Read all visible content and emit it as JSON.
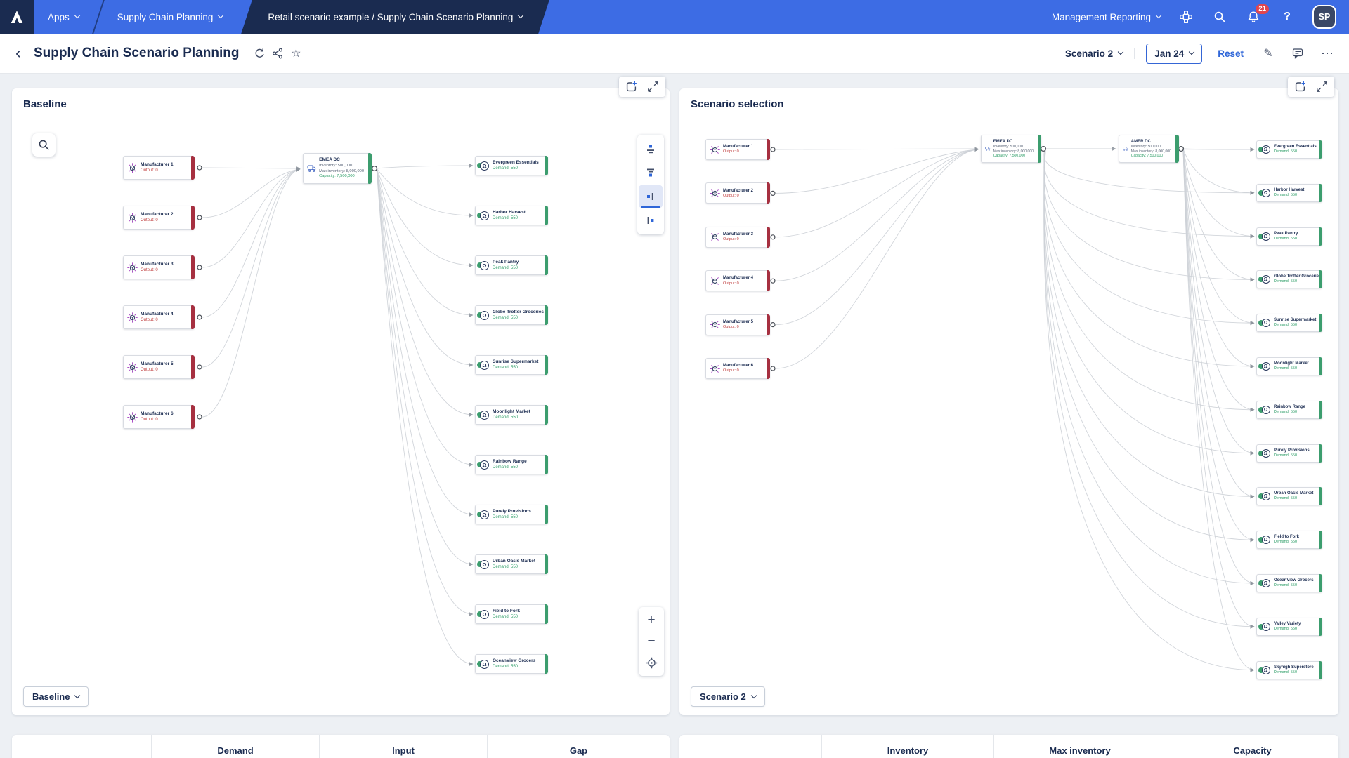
{
  "topbar": {
    "apps_label": "Apps",
    "workspace_label": "Supply Chain Planning",
    "tab_label": "Retail scenario example / Supply Chain Scenario Planning",
    "right_menu_label": "Management Reporting",
    "notification_count": "21",
    "avatar_initials": "SP"
  },
  "header": {
    "title": "Supply Chain Scenario Planning",
    "scenario_selector": "Scenario 2",
    "period_selector": "Jan 24",
    "reset_label": "Reset"
  },
  "panels": {
    "baseline": {
      "title": "Baseline",
      "footer_selector": "Baseline",
      "manufacturers": [
        {
          "name": "Manufacturer 1",
          "detail": "Output: 0"
        },
        {
          "name": "Manufacturer 2",
          "detail": "Output: 0"
        },
        {
          "name": "Manufacturer 3",
          "detail": "Output: 0"
        },
        {
          "name": "Manufacturer 4",
          "detail": "Output: 0"
        },
        {
          "name": "Manufacturer 5",
          "detail": "Output: 0"
        },
        {
          "name": "Manufacturer 6",
          "detail": "Output: 0"
        }
      ],
      "dcs": [
        {
          "name": "EMEA DC",
          "lines": [
            "Inventory: 500,000",
            "Max inventory: 8,000,000"
          ],
          "capacity": "Capacity: 7,500,000"
        }
      ],
      "retailers": [
        {
          "name": "Evergreen Essentials",
          "detail": "Demand: 550"
        },
        {
          "name": "Harbor Harvest",
          "detail": "Demand: 550"
        },
        {
          "name": "Peak Pantry",
          "detail": "Demand: 550"
        },
        {
          "name": "Globe Trotter Groceries",
          "detail": "Demand: 550"
        },
        {
          "name": "Sunrise Supermarket",
          "detail": "Demand: 550"
        },
        {
          "name": "Moonlight Market",
          "detail": "Demand: 550"
        },
        {
          "name": "Rainbow Range",
          "detail": "Demand: 550"
        },
        {
          "name": "Purely Provisions",
          "detail": "Demand: 550"
        },
        {
          "name": "Urban Oasis Market",
          "detail": "Demand: 550"
        },
        {
          "name": "Field to Fork",
          "detail": "Demand: 550"
        },
        {
          "name": "OceanView Grocers",
          "detail": "Demand: 550"
        }
      ]
    },
    "scenario": {
      "title": "Scenario selection",
      "footer_selector": "Scenario 2",
      "manufacturers": [
        {
          "name": "Manufacturer 1",
          "detail": "Output: 0"
        },
        {
          "name": "Manufacturer 2",
          "detail": "Output: 0"
        },
        {
          "name": "Manufacturer 3",
          "detail": "Output: 0"
        },
        {
          "name": "Manufacturer 4",
          "detail": "Output: 0"
        },
        {
          "name": "Manufacturer 5",
          "detail": "Output: 0"
        },
        {
          "name": "Manufacturer 6",
          "detail": "Output: 0"
        }
      ],
      "dcs": [
        {
          "name": "EMEA DC",
          "lines": [
            "Inventory: 500,000",
            "Max inventory: 8,000,000"
          ],
          "capacity": "Capacity: 7,500,000"
        },
        {
          "name": "AMER DC",
          "lines": [
            "Inventory: 500,000",
            "Max inventory: 8,000,000"
          ],
          "capacity": "Capacity: 7,500,000"
        }
      ],
      "retailers": [
        {
          "name": "Evergreen Essentials",
          "detail": "Demand: 550"
        },
        {
          "name": "Harbor Harvest",
          "detail": "Demand: 550"
        },
        {
          "name": "Peak Pantry",
          "detail": "Demand: 550"
        },
        {
          "name": "Globe Trotter Groceries",
          "detail": "Demand: 550"
        },
        {
          "name": "Sunrise Supermarket",
          "detail": "Demand: 550"
        },
        {
          "name": "Moonlight Market",
          "detail": "Demand: 550"
        },
        {
          "name": "Rainbow Range",
          "detail": "Demand: 550"
        },
        {
          "name": "Purely Provisions",
          "detail": "Demand: 550"
        },
        {
          "name": "Urban Oasis Market",
          "detail": "Demand: 550"
        },
        {
          "name": "Field to Fork",
          "detail": "Demand: 550"
        },
        {
          "name": "OceanView Grocers",
          "detail": "Demand: 550"
        },
        {
          "name": "Valley Variety",
          "detail": "Demand: 550"
        },
        {
          "name": "Skyhigh Superstore",
          "detail": "Demand: 550"
        }
      ]
    }
  },
  "tables": {
    "left_headers": [
      "Demand",
      "Input",
      "Gap"
    ],
    "right_headers": [
      "Inventory",
      "Max inventory",
      "Capacity"
    ]
  },
  "icons": {
    "back": "‹",
    "star": "☆",
    "pencil": "✎",
    "more": "⋯",
    "help": "?",
    "plus": "+",
    "minus": "−",
    "store_glyph": "Ω"
  },
  "colors": {
    "brand_blue": "#3d6ce4",
    "navy": "#1a2b50",
    "accent_blue": "#2f66d8",
    "status_red": "#a63040",
    "status_green": "#3c9d6e",
    "badge_red": "#e1464f"
  }
}
